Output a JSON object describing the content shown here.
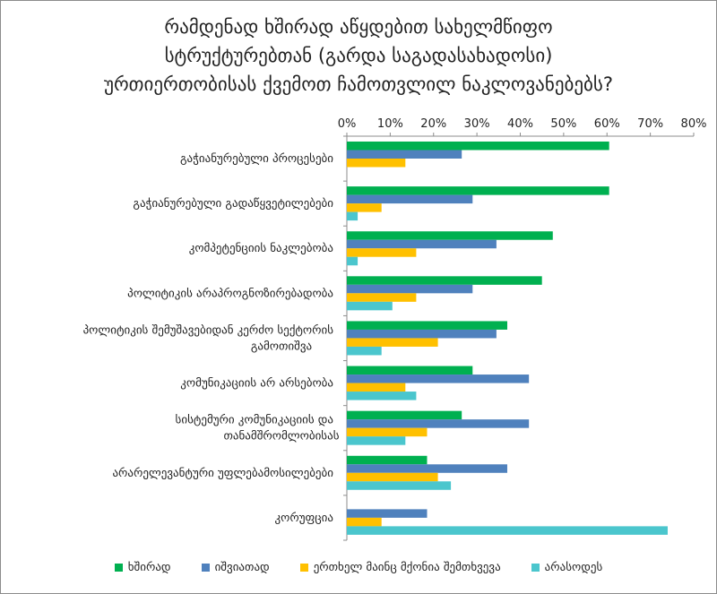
{
  "chart_data": {
    "type": "bar",
    "orientation": "horizontal",
    "title_lines": [
      "რამდენად ხშირად აწყდებით სახელმწიფო",
      "სტრუქტურებთან (გარდა საგადასახადოსი)",
      "ურთიერთობისას ქვემოთ ჩამოთვლილ ნაკლოვანებებს?"
    ],
    "categories": [
      [
        "გაჭიანურებული პროცესები"
      ],
      [
        "გაჭიანურებული გადაწყვეტილებები"
      ],
      [
        "კომპეტენციის ნაკლებობა"
      ],
      [
        "პოლიტიკის არაპროგნოზირებადობა"
      ],
      [
        "პოლიტიკის შემუშავებიდან კერძო სექტორის",
        "გამოთიშვა"
      ],
      [
        "კომუნიკაციის არ არსებობა"
      ],
      [
        "სისტემური კომუნიკაციის და",
        "თანამშრომლობისას"
      ],
      [
        "არარელევანტური უფლებამოსილებები"
      ],
      [
        "კორუფცია"
      ]
    ],
    "series": [
      {
        "name": "ხშირად",
        "color": "#00b050",
        "values": [
          60.5,
          60.5,
          47.5,
          45,
          37,
          29,
          26.5,
          18.5,
          0
        ]
      },
      {
        "name": "იშვიათად",
        "color": "#4f81bd",
        "values": [
          26.5,
          29,
          34.5,
          29,
          34.5,
          42,
          42,
          37,
          18.5
        ]
      },
      {
        "name": "ერთხელ მაინც მქონია შემთხვევა",
        "color": "#ffc000",
        "values": [
          13.5,
          8,
          16,
          16,
          21,
          13.5,
          18.5,
          21,
          8
        ]
      },
      {
        "name": "არასოდეს",
        "color": "#4bc6cd",
        "values": [
          0,
          2.5,
          2.5,
          10.5,
          8,
          16,
          13.5,
          24,
          74
        ]
      }
    ],
    "xlim": [
      0,
      80
    ],
    "x_ticks": [
      "0%",
      "10%",
      "20%",
      "30%",
      "40%",
      "50%",
      "60%",
      "70%",
      "80%"
    ],
    "grid": false,
    "legend_position": "bottom"
  }
}
